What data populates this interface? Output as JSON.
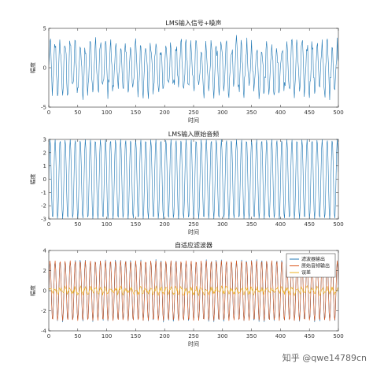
{
  "chart_data": [
    {
      "type": "line",
      "title": "LMS输入信号+噪声",
      "xlabel": "时间",
      "ylabel": "幅度",
      "xlim": [
        0,
        500
      ],
      "ylim": [
        -5,
        5
      ],
      "xticks": [
        "0",
        "50",
        "100",
        "150",
        "200",
        "250",
        "300",
        "350",
        "400",
        "450",
        "500"
      ],
      "yticks": [
        "5",
        "0",
        "-5"
      ],
      "grid": false,
      "series": [
        {
          "color": "#1f77b4",
          "amplitude": 3.0,
          "period_samples": 8.7,
          "noise_amplitude": 1.2,
          "samples": 500
        }
      ]
    },
    {
      "type": "line",
      "title": "LMS输入原始音频",
      "xlabel": "时间",
      "ylabel": "幅度",
      "xlim": [
        0,
        500
      ],
      "ylim": [
        -3,
        3
      ],
      "xticks": [
        "0",
        "50",
        "100",
        "150",
        "200",
        "250",
        "300",
        "350",
        "400",
        "450",
        "500"
      ],
      "yticks": [
        "3",
        "2",
        "1",
        "0",
        "-1",
        "-2",
        "-3"
      ],
      "grid": false,
      "series": [
        {
          "color": "#1f77b4",
          "amplitude": 3.0,
          "period_samples": 8.7,
          "noise_amplitude": 0,
          "samples": 500
        }
      ]
    },
    {
      "type": "line",
      "title": "自适应滤波器",
      "xlabel": "时间",
      "ylabel": "幅度",
      "xlim": [
        0,
        500
      ],
      "ylim": [
        -4,
        4
      ],
      "xticks": [
        "0",
        "50",
        "100",
        "150",
        "200",
        "250",
        "300",
        "350",
        "400",
        "450",
        "500"
      ],
      "yticks": [
        "4",
        "2",
        "0",
        "-2",
        "-4"
      ],
      "grid": false,
      "legend": "top-right",
      "series": [
        {
          "name": "滤波器输出",
          "color": "#1f77b4",
          "amplitude": 3.0,
          "period_samples": 8.7,
          "noise_amplitude": 0.15,
          "samples": 500
        },
        {
          "name": "原始音频输出",
          "color": "#d95319",
          "amplitude": 3.0,
          "period_samples": 8.7,
          "noise_amplitude": 0,
          "samples": 500
        },
        {
          "name": "误差",
          "color": "#edb120",
          "amplitude": 0.25,
          "period_samples": 8.7,
          "noise_amplitude": 0.25,
          "samples": 500
        }
      ]
    }
  ],
  "watermark": "知乎 @qwe14789cn",
  "colors": {
    "axis": "#262626",
    "background": "#ffffff"
  }
}
